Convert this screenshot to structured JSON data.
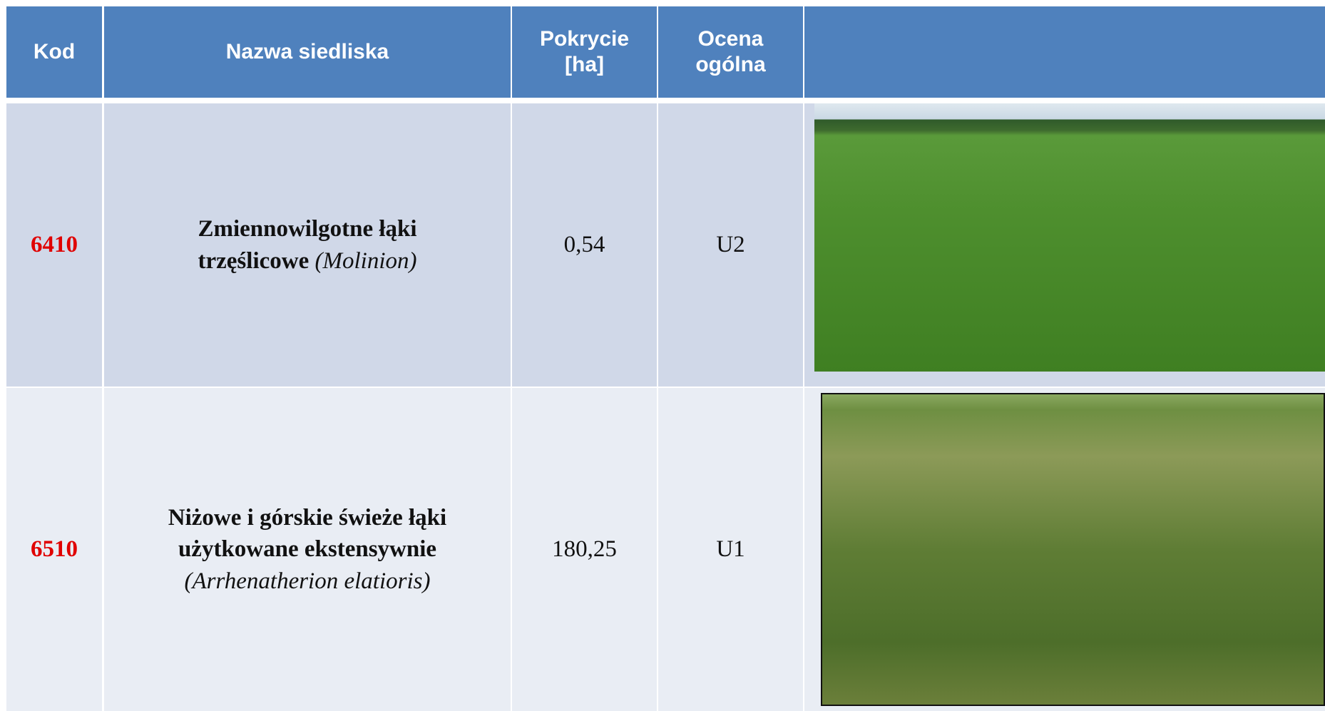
{
  "table": {
    "columns": [
      "Kod",
      "Nazwa siedliska",
      "Pokrycie [ha]",
      "Ocena ogólna"
    ],
    "rows": [
      {
        "code": "6410",
        "name": "Zmiennowilgotne łąki trzęślicowe",
        "latin": "(Molinion)",
        "coverage": "0,54",
        "rating": "U2"
      },
      {
        "code": "6510",
        "name": "Niżowe i górskie świeże łąki użytkowane ekstensywnie",
        "latin": "(Arrhenatherion elatioris)",
        "coverage": "180,25",
        "rating": "U1"
      }
    ]
  }
}
